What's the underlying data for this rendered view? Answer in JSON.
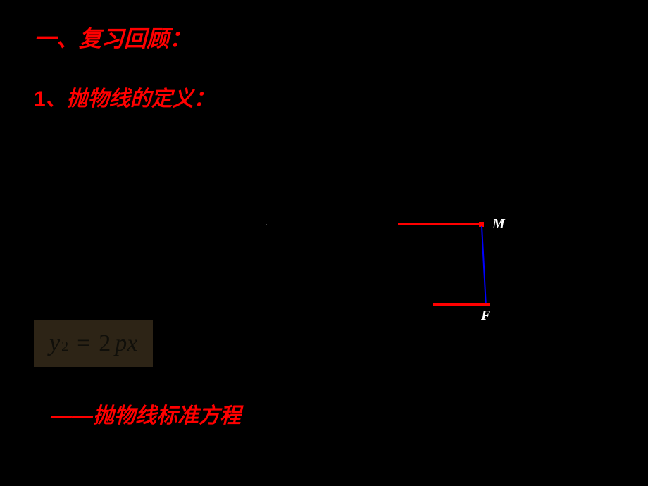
{
  "slide": {
    "background_color": "#000000",
    "accent_color": "#ff0000",
    "line_color_blue": "#0000ff",
    "text_color_white": "#ffffff",
    "equation_bg": "#2d2416",
    "equation_text_color": "#100f0a",
    "title": "一、复习回顾：",
    "subtitle_number": "1",
    "subtitle_text": "、抛物线的定义：",
    "center_marker": "·",
    "equation": {
      "var_y": "y",
      "sup": "2",
      "eq_sign": "=",
      "coeff": "2",
      "var_p": "p",
      "var_x": "x"
    },
    "bottom_label": "——抛物线标准方程",
    "diagram": {
      "label_m": "M",
      "label_f": "F",
      "point_color": "#ff0000",
      "horiz_line_color": "#ff0000",
      "vert_line_color": "#0000ff",
      "focus_line_color": "#ff0000"
    }
  },
  "fonts": {
    "title_size": 32,
    "subtitle_size": 30,
    "equation_size": 34,
    "label_size": 20,
    "bottom_size": 30
  }
}
